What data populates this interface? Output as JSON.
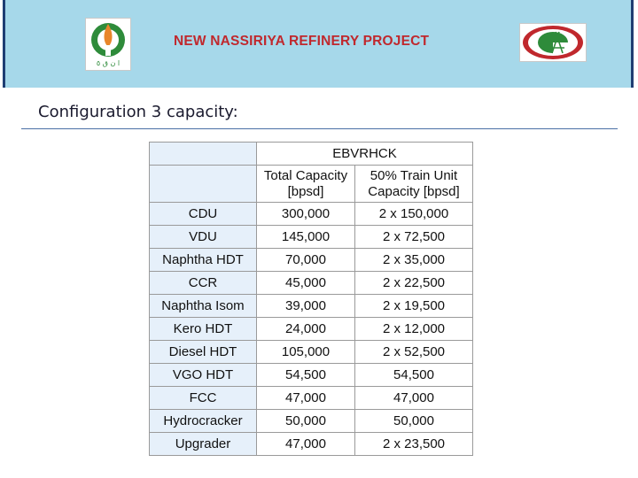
{
  "banner": {
    "title": "NEW NASSIRIYA REFINERY PROJECT",
    "left_logo_text": "ا ن ق ٥",
    "brand_red": "#c0282d",
    "brand_green": "#2e8b3a"
  },
  "heading": "Configuration 3 capacity:",
  "table": {
    "group_header": "EBVRHCK",
    "columns": [
      "Total Capacity [bpsd]",
      "50% Train Unit Capacity [bpsd]"
    ],
    "rows": [
      {
        "unit": "CDU",
        "total": "300,000",
        "train": "2 x 150,000"
      },
      {
        "unit": "VDU",
        "total": "145,000",
        "train": "2 x 72,500"
      },
      {
        "unit": "Naphtha HDT",
        "total": "70,000",
        "train": "2 x 35,000"
      },
      {
        "unit": "CCR",
        "total": "45,000",
        "train": "2 x 22,500"
      },
      {
        "unit": "Naphtha Isom",
        "total": "39,000",
        "train": "2 x 19,500"
      },
      {
        "unit": "Kero HDT",
        "total": "24,000",
        "train": "2 x 12,000"
      },
      {
        "unit": "Diesel HDT",
        "total": "105,000",
        "train": "2 x 52,500"
      },
      {
        "unit": "VGO HDT",
        "total": "54,500",
        "train": "54,500"
      },
      {
        "unit": "FCC",
        "total": "47,000",
        "train": "47,000"
      },
      {
        "unit": "Hydrocracker",
        "total": "50,000",
        "train": "50,000"
      },
      {
        "unit": "Upgrader",
        "total": "47,000",
        "train": "2 x 23,500"
      }
    ]
  }
}
